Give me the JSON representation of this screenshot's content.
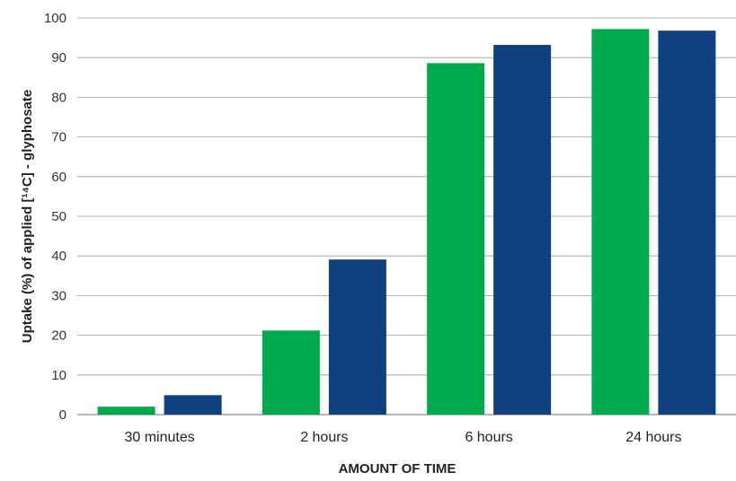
{
  "chart_data": {
    "type": "bar",
    "categories": [
      "30 minutes",
      "2 hours",
      "6 hours",
      "24 hours"
    ],
    "series": [
      {
        "values": [
          2,
          21.2,
          88.6,
          97.2
        ],
        "color": "#00ab4e"
      },
      {
        "values": [
          4.9,
          39.1,
          93.2,
          96.8
        ],
        "color": "#0f4180"
      }
    ],
    "title": "",
    "xlabel": "AMOUNT OF TIME",
    "ylabel": "Uptake (%) of applied [¹⁴C] - glyphosate",
    "ylim": [
      0,
      100
    ],
    "yticks": [
      0,
      10,
      20,
      30,
      40,
      50,
      60,
      70,
      80,
      90,
      100
    ],
    "grid": true,
    "legend": "none"
  }
}
